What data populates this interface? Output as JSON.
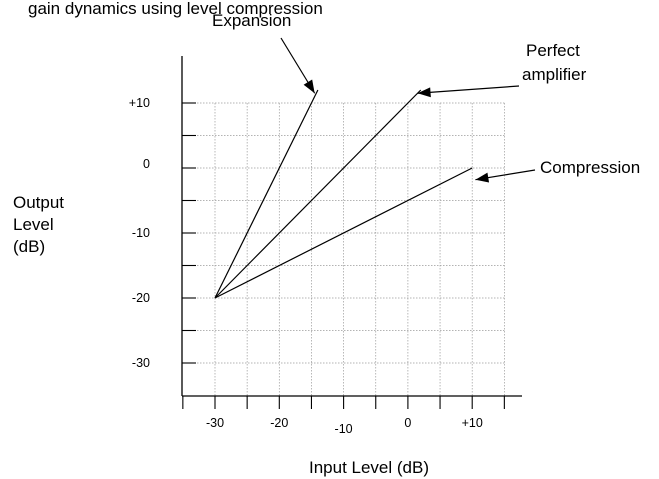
{
  "header_fragment": "gain dynamics using level compression",
  "chart_data": {
    "type": "line",
    "xlabel": "Input Level (dB)",
    "ylabel": [
      "Output",
      "Level",
      "(dB)"
    ],
    "x_ticks": [
      "-30",
      "-20",
      "-10",
      "0",
      "+10"
    ],
    "x_tick_values": [
      -30,
      -20,
      -10,
      0,
      10
    ],
    "y_ticks": [
      "+10",
      "0",
      "-10",
      "-20",
      "-30"
    ],
    "y_tick_values": [
      10,
      0,
      -10,
      -20,
      -30
    ],
    "xlim": [
      -35,
      13
    ],
    "ylim": [
      -35,
      17
    ],
    "grid": true,
    "series": [
      {
        "name": "Expansion",
        "x": [
          -30,
          -14
        ],
        "y": [
          -20,
          12
        ]
      },
      {
        "name": "Perfect amplifier",
        "x": [
          -30,
          2
        ],
        "y": [
          -20,
          12
        ]
      },
      {
        "name": "Compression",
        "x": [
          -30,
          10
        ],
        "y": [
          -20,
          0
        ]
      }
    ],
    "annotations": [
      {
        "text": "Expansion",
        "target": [
          -14.5,
          11.5
        ]
      },
      {
        "text": [
          "Perfect",
          "amplifier"
        ],
        "target": [
          1.5,
          11.5
        ]
      },
      {
        "text": "Compression",
        "target": [
          10.5,
          -1.8
        ]
      }
    ]
  }
}
